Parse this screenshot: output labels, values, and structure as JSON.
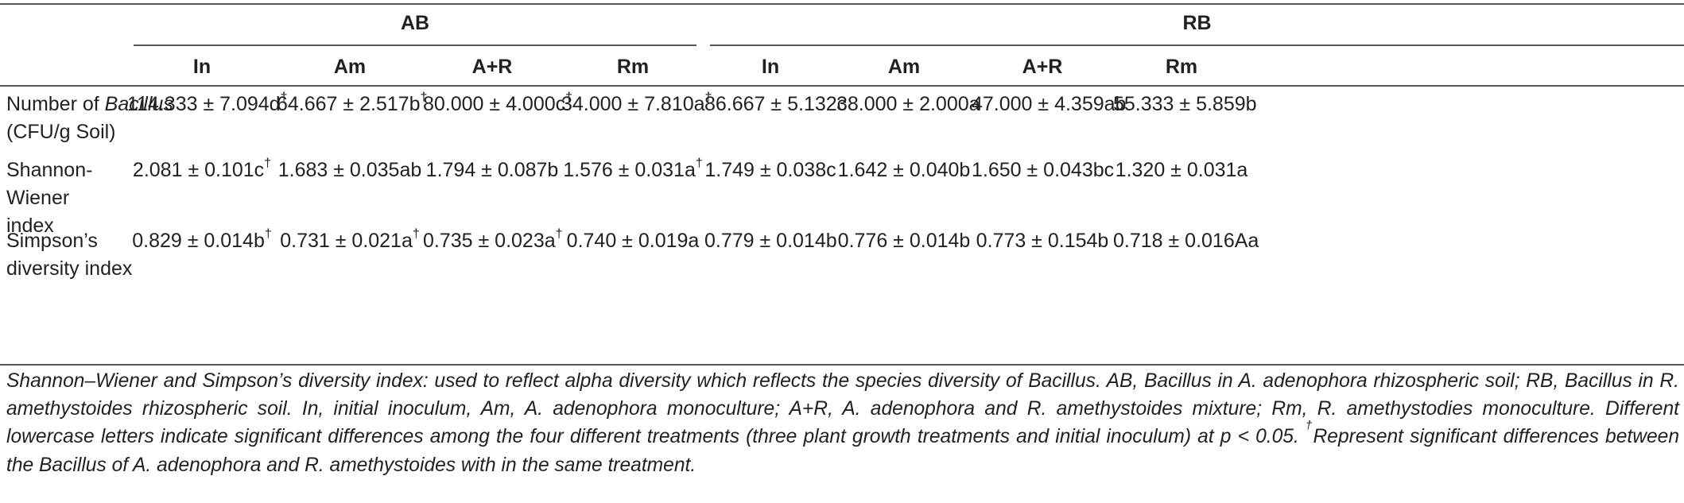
{
  "table": {
    "groups": [
      "AB",
      "RB"
    ],
    "columns": [
      "In",
      "Am",
      "A+R",
      "Rm",
      "In",
      "Am",
      "A+R",
      "Rm"
    ],
    "rows": [
      {
        "label_pre": "Number of ",
        "label_italic": "Bacillus",
        "label_post": " (CFU/g Soil)",
        "cells": [
          {
            "v": "114.333 ± 7.094d",
            "sup": "†"
          },
          {
            "v": "64.667 ± 2.517b",
            "sup": "†"
          },
          {
            "v": "80.000 ± 4.000c",
            "sup": "†"
          },
          {
            "v": "34.000 ± 7.810a",
            "sup": "†"
          },
          {
            "v": "86.667 ± 5.132c",
            "sup": ""
          },
          {
            "v": "38.000 ± 2.000a",
            "sup": ""
          },
          {
            "v": "47.000 ± 4.359ab",
            "sup": ""
          },
          {
            "v": "55.333 ± 5.859b",
            "sup": ""
          }
        ]
      },
      {
        "label_pre": "Shannon-Wiener index",
        "cells": [
          {
            "v": "2.081 ± 0.101c",
            "sup": "†"
          },
          {
            "v": "1.683 ± 0.035ab",
            "sup": ""
          },
          {
            "v": "1.794 ± 0.087b",
            "sup": ""
          },
          {
            "v": "1.576 ± 0.031a",
            "sup": "†"
          },
          {
            "v": "1.749 ± 0.038c",
            "sup": ""
          },
          {
            "v": "1.642 ± 0.040b",
            "sup": ""
          },
          {
            "v": "1.650 ± 0.043bc",
            "sup": ""
          },
          {
            "v": "1.320 ± 0.031a",
            "sup": ""
          }
        ]
      },
      {
        "label_pre": "Simpson’s diversity index",
        "cells": [
          {
            "v": "0.829 ± 0.014b",
            "sup": "†"
          },
          {
            "v": "0.731 ± 0.021a",
            "sup": "†"
          },
          {
            "v": "0.735 ± 0.023a",
            "sup": "†"
          },
          {
            "v": "0.740 ± 0.019a",
            "sup": ""
          },
          {
            "v": "0.779 ± 0.014b",
            "sup": ""
          },
          {
            "v": "0.776 ± 0.014b",
            "sup": ""
          },
          {
            "v": "0.773 ± 0.154b",
            "sup": ""
          },
          {
            "v": "0.718 ± 0.016Aa",
            "sup": ""
          }
        ]
      }
    ]
  },
  "caption": {
    "main": "Shannon–Wiener and Simpson’s diversity index: used to reflect alpha diversity which reflects the species diversity of Bacillus. AB, Bacillus in A. adenophora rhizospheric soil; RB, Bacillus in R. amethystoides rhizospheric soil. In, initial inoculum, Am, A. adenophora monoculture; A+R, A. adenophora and R. amethystoides mixture; Rm, R. amethystodies monoculture. Different lowercase letters indicate significant differences among the four different treatments (three plant growth treatments and initial inoculum) at p < 0.05. ",
    "dagger": "†",
    "tail": "Represent significant differences between the Bacillus of A. adenophora and R. amethystoides with in the same treatment."
  }
}
